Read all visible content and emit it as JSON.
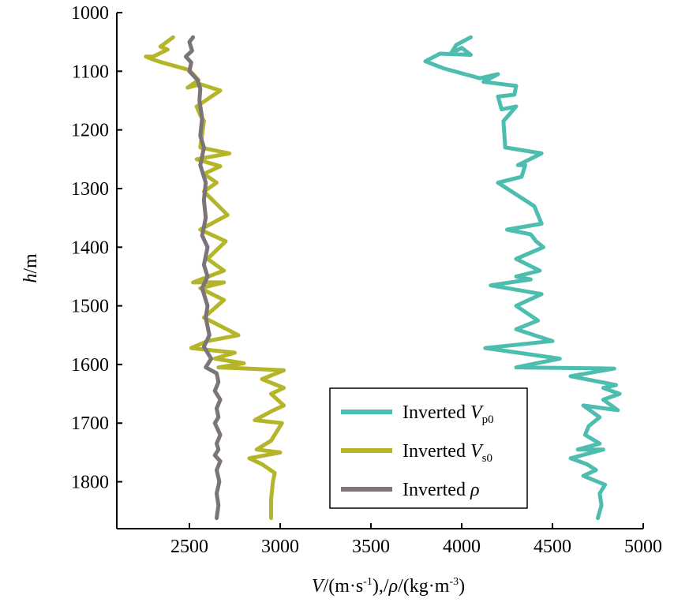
{
  "chart_data": {
    "type": "line",
    "orientation": "vertical-profile",
    "xlabel": "V/(m·s-1),/ρ/(kg·m-3)",
    "xlabel_parts": {
      "v": "V",
      "unit1": "/(m·s",
      "sup1": "-1",
      "sep": "),/",
      "rho": "ρ",
      "unit2": "/(kg·m",
      "sup2": "-3",
      "close": ")"
    },
    "ylabel": "h/m",
    "ylabel_parts": {
      "h": "h",
      "rest": "/m"
    },
    "xlim": [
      2100,
      5000
    ],
    "ylim": [
      1000,
      1880
    ],
    "y_inverted": true,
    "x_ticks": [
      2500,
      3000,
      3500,
      4000,
      4500,
      5000
    ],
    "y_ticks": [
      1000,
      1100,
      1200,
      1300,
      1400,
      1500,
      1600,
      1700,
      1800
    ],
    "legend_position": "bottom-right",
    "series": [
      {
        "name": "Inverted Vp0",
        "legend": {
          "prefix": "Inverted ",
          "symbol": "V",
          "sub": "p0"
        },
        "color": "#4dbdb0",
        "points": [
          [
            4050,
            1042
          ],
          [
            3970,
            1055
          ],
          [
            3940,
            1070
          ],
          [
            4000,
            1060
          ],
          [
            4050,
            1072
          ],
          [
            3880,
            1070
          ],
          [
            3800,
            1083
          ],
          [
            3900,
            1095
          ],
          [
            4100,
            1112
          ],
          [
            4200,
            1105
          ],
          [
            4120,
            1118
          ],
          [
            4300,
            1125
          ],
          [
            4290,
            1140
          ],
          [
            4200,
            1143
          ],
          [
            4220,
            1165
          ],
          [
            4300,
            1160
          ],
          [
            4230,
            1185
          ],
          [
            4240,
            1230
          ],
          [
            4440,
            1240
          ],
          [
            4310,
            1260
          ],
          [
            4350,
            1260
          ],
          [
            4330,
            1280
          ],
          [
            4200,
            1290
          ],
          [
            4400,
            1330
          ],
          [
            4440,
            1360
          ],
          [
            4250,
            1370
          ],
          [
            4380,
            1378
          ],
          [
            4410,
            1390
          ],
          [
            4450,
            1400
          ],
          [
            4300,
            1420
          ],
          [
            4430,
            1440
          ],
          [
            4300,
            1450
          ],
          [
            4380,
            1455
          ],
          [
            4160,
            1465
          ],
          [
            4440,
            1480
          ],
          [
            4300,
            1500
          ],
          [
            4420,
            1525
          ],
          [
            4300,
            1540
          ],
          [
            4500,
            1560
          ],
          [
            4130,
            1572
          ],
          [
            4540,
            1590
          ],
          [
            4300,
            1605
          ],
          [
            4840,
            1607
          ],
          [
            4600,
            1620
          ],
          [
            4850,
            1635
          ],
          [
            4780,
            1640
          ],
          [
            4870,
            1650
          ],
          [
            4780,
            1660
          ],
          [
            4860,
            1678
          ],
          [
            4670,
            1670
          ],
          [
            4760,
            1690
          ],
          [
            4700,
            1705
          ],
          [
            4680,
            1720
          ],
          [
            4760,
            1735
          ],
          [
            4640,
            1745
          ],
          [
            4780,
            1745
          ],
          [
            4600,
            1760
          ],
          [
            4690,
            1770
          ],
          [
            4740,
            1780
          ],
          [
            4670,
            1790
          ],
          [
            4790,
            1805
          ],
          [
            4760,
            1820
          ],
          [
            4770,
            1840
          ],
          [
            4750,
            1862
          ]
        ]
      },
      {
        "name": "Inverted Vs0",
        "legend": {
          "prefix": "Inverted ",
          "symbol": "V",
          "sub": "s0"
        },
        "color": "#b5b529",
        "points": [
          [
            2410,
            1042
          ],
          [
            2340,
            1058
          ],
          [
            2380,
            1063
          ],
          [
            2300,
            1075
          ],
          [
            2260,
            1075
          ],
          [
            2300,
            1080
          ],
          [
            2350,
            1085
          ],
          [
            2500,
            1098
          ],
          [
            2550,
            1115
          ],
          [
            2490,
            1128
          ],
          [
            2560,
            1122
          ],
          [
            2670,
            1133
          ],
          [
            2540,
            1160
          ],
          [
            2560,
            1175
          ],
          [
            2580,
            1185
          ],
          [
            2560,
            1230
          ],
          [
            2720,
            1240
          ],
          [
            2540,
            1250
          ],
          [
            2670,
            1262
          ],
          [
            2580,
            1275
          ],
          [
            2650,
            1290
          ],
          [
            2580,
            1305
          ],
          [
            2710,
            1345
          ],
          [
            2560,
            1370
          ],
          [
            2700,
            1390
          ],
          [
            2600,
            1420
          ],
          [
            2690,
            1440
          ],
          [
            2520,
            1460
          ],
          [
            2690,
            1460
          ],
          [
            2560,
            1470
          ],
          [
            2690,
            1490
          ],
          [
            2580,
            1520
          ],
          [
            2770,
            1550
          ],
          [
            2600,
            1560
          ],
          [
            2510,
            1572
          ],
          [
            2750,
            1580
          ],
          [
            2640,
            1590
          ],
          [
            2800,
            1598
          ],
          [
            2660,
            1605
          ],
          [
            2820,
            1607
          ],
          [
            3020,
            1610
          ],
          [
            2900,
            1625
          ],
          [
            3020,
            1640
          ],
          [
            2950,
            1650
          ],
          [
            3020,
            1670
          ],
          [
            2950,
            1680
          ],
          [
            2860,
            1695
          ],
          [
            3010,
            1700
          ],
          [
            2950,
            1730
          ],
          [
            2870,
            1745
          ],
          [
            3000,
            1750
          ],
          [
            2830,
            1760
          ],
          [
            2900,
            1770
          ],
          [
            2970,
            1785
          ],
          [
            2960,
            1800
          ],
          [
            2950,
            1830
          ],
          [
            2950,
            1862
          ]
        ]
      },
      {
        "name": "Inverted ρ",
        "legend": {
          "prefix": "Inverted ",
          "symbol": "ρ",
          "sub": ""
        },
        "color": "#7b7478",
        "points": [
          [
            2520,
            1042
          ],
          [
            2500,
            1050
          ],
          [
            2515,
            1065
          ],
          [
            2480,
            1075
          ],
          [
            2510,
            1085
          ],
          [
            2500,
            1100
          ],
          [
            2545,
            1115
          ],
          [
            2560,
            1130
          ],
          [
            2555,
            1150
          ],
          [
            2570,
            1180
          ],
          [
            2560,
            1210
          ],
          [
            2580,
            1230
          ],
          [
            2560,
            1260
          ],
          [
            2590,
            1290
          ],
          [
            2580,
            1320
          ],
          [
            2590,
            1350
          ],
          [
            2570,
            1380
          ],
          [
            2600,
            1400
          ],
          [
            2580,
            1430
          ],
          [
            2600,
            1450
          ],
          [
            2570,
            1470
          ],
          [
            2600,
            1500
          ],
          [
            2590,
            1520
          ],
          [
            2610,
            1550
          ],
          [
            2580,
            1570
          ],
          [
            2620,
            1590
          ],
          [
            2590,
            1605
          ],
          [
            2650,
            1615
          ],
          [
            2660,
            1630
          ],
          [
            2640,
            1645
          ],
          [
            2670,
            1660
          ],
          [
            2650,
            1675
          ],
          [
            2660,
            1690
          ],
          [
            2640,
            1700
          ],
          [
            2670,
            1720
          ],
          [
            2650,
            1735
          ],
          [
            2660,
            1745
          ],
          [
            2640,
            1755
          ],
          [
            2670,
            1765
          ],
          [
            2650,
            1780
          ],
          [
            2665,
            1800
          ],
          [
            2650,
            1820
          ],
          [
            2660,
            1840
          ],
          [
            2650,
            1862
          ]
        ]
      }
    ]
  }
}
